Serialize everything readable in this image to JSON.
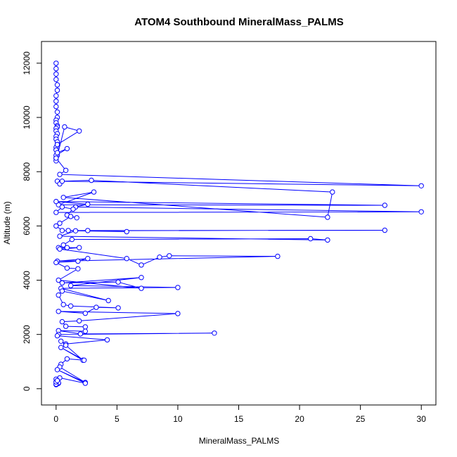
{
  "chart_data": {
    "type": "line",
    "title": "ATOM4 Southbound MineralMass_PALMS",
    "xlabel": "MineralMass_PALMS",
    "ylabel": "Altitude (m)",
    "xlim": [
      -1.2,
      31.2
    ],
    "ylim": [
      -600,
      12800
    ],
    "x_ticks": [
      0,
      5,
      10,
      15,
      20,
      25,
      30
    ],
    "y_ticks": [
      0,
      2000,
      4000,
      6000,
      8000,
      10000,
      12000
    ],
    "grid": false,
    "color": "#0000ff",
    "marker": "open-circle",
    "series": [
      {
        "x": [
          0.0,
          0.0,
          0.0,
          0.0,
          0.1,
          0.1,
          0.0,
          0.0,
          0.0,
          0.1,
          0.1,
          0.0,
          0.0,
          0.1,
          0.1,
          0.0,
          0.0,
          0.1,
          0.0,
          0.0,
          0.1,
          0.1,
          0.0,
          0.0,
          0.1,
          0.1,
          0.0,
          0.0,
          0.7,
          1.9,
          0.1,
          0.0,
          0.0,
          0.9,
          0.1,
          0.0,
          0.8,
          0.3,
          30.0,
          0.1,
          0.3,
          0.5,
          2.9,
          22.7,
          22.3,
          0.6,
          3.1,
          0.2,
          27.0,
          0.0,
          2.6,
          1.6,
          30.0,
          0.0,
          0.5,
          1.4,
          0.9,
          1.7,
          1.2,
          0.3,
          0.0,
          0.5,
          5.8,
          1.0,
          2.6,
          27.0,
          1.6,
          0.3,
          22.3,
          20.9,
          1.3,
          0.6,
          0.2,
          0.9,
          1.9,
          0.3,
          5.8,
          7.0,
          8.5,
          9.3,
          18.2,
          0.1,
          2.6,
          1.8,
          0.0,
          0.9,
          1.8,
          0.2,
          7.0,
          5.1,
          0.5,
          7.0,
          1.2,
          10.0,
          0.4,
          4.3,
          0.5,
          0.2,
          0.6,
          1.2,
          5.1,
          3.3,
          2.4,
          0.2,
          10.0,
          1.9,
          0.5,
          0.8,
          2.4,
          2.4,
          0.2,
          2.0,
          13.0,
          0.2,
          0.1,
          4.2,
          0.8,
          0.4,
          0.8,
          2.2,
          0.4,
          2.3,
          0.9,
          0.4,
          0.3,
          2.4,
          0.1,
          2.4,
          0.3,
          0.0,
          0.1,
          0.0,
          0.2,
          0.0,
          0.1,
          0.2,
          0.0,
          0.0,
          0.1
        ],
        "y": [
          12000,
          11800,
          11600,
          11400,
          11200,
          11000,
          10800,
          10600,
          10400,
          10200,
          10000,
          9900,
          9800,
          9700,
          9650,
          9600,
          9500,
          9400,
          9300,
          9200,
          9100,
          9000,
          8900,
          8800,
          8700,
          8600,
          8500,
          8400,
          9650,
          9500,
          9000,
          8800,
          8600,
          8850,
          8700,
          8500,
          8050,
          7900,
          7480,
          7650,
          7550,
          7650,
          7680,
          7250,
          6320,
          7050,
          7250,
          6780,
          6760,
          6900,
          6800,
          6700,
          6520,
          6500,
          6700,
          6620,
          6400,
          6300,
          6350,
          6100,
          6000,
          5830,
          5790,
          5830,
          5830,
          5840,
          5820,
          5620,
          5480,
          5530,
          5500,
          5300,
          5200,
          5200,
          5200,
          5150,
          4800,
          4560,
          4850,
          4900,
          4880,
          4700,
          4800,
          4700,
          4650,
          4450,
          4420,
          4000,
          3700,
          3930,
          3900,
          4100,
          3800,
          3730,
          3700,
          3250,
          3600,
          3450,
          3100,
          3050,
          2980,
          3000,
          2780,
          2850,
          2770,
          2500,
          2470,
          2300,
          2280,
          2120,
          2140,
          2020,
          2050,
          2000,
          1950,
          1800,
          1650,
          1750,
          1600,
          1050,
          1520,
          1050,
          1100,
          900,
          800,
          230,
          700,
          200,
          400,
          350,
          300,
          250,
          200,
          150,
          180,
          220,
          170,
          250,
          300
        ]
      }
    ]
  }
}
